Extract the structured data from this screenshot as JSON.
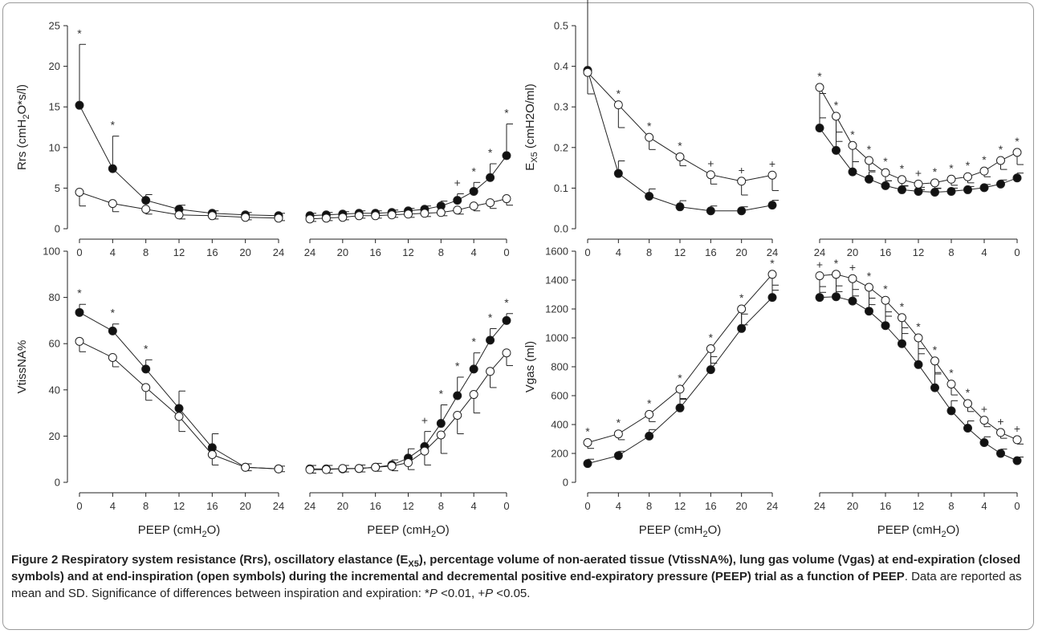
{
  "figure": {
    "caption": {
      "label": "Figure 2",
      "title_part1": "Respiratory system resistance (Rrs), oscillatory elastance (E",
      "title_sub": "X5",
      "title_part2": "), percentage volume of non-aerated tissue (VtissNA%), lung gas volume (Vgas) at end-expiration (closed symbols) and at end-inspiration (open symbols) during the incremental and decremental positive end-expiratory pressure (PEEP) trial as a function of PEEP",
      "body1": ". Data are reported as mean and SD. Significance of differences between inspiration and expiration: *",
      "p1": "P",
      "body2": " <0.01, +",
      "p2": "P",
      "body3": " <0.05."
    },
    "xlabel": "PEEP (cmH2O)"
  },
  "chart_data": [
    {
      "type": "line",
      "panel": "Rrs-incremental",
      "ylabel": "Rrs (cmH2O*s/l)",
      "xlabel": "PEEP (cmH2O)",
      "x": [
        0,
        4,
        8,
        12,
        16,
        20,
        24
      ],
      "xticks": [
        0,
        4,
        8,
        12,
        16,
        20,
        24
      ],
      "xlim": [
        0,
        24
      ],
      "ylim": [
        0,
        25
      ],
      "yticks": [
        0,
        5,
        10,
        15,
        20,
        25
      ],
      "series": [
        {
          "marker": "closed",
          "values": [
            15.2,
            7.4,
            3.5,
            2.4,
            1.9,
            1.7,
            1.6
          ],
          "sd": [
            7.5,
            4.0,
            0.7,
            0.5,
            0.3,
            0.3,
            0.3
          ]
        },
        {
          "marker": "open",
          "values": [
            4.5,
            3.1,
            2.4,
            1.7,
            1.6,
            1.4,
            1.3
          ],
          "sd": [
            1.7,
            1.0,
            0.6,
            0.5,
            0.4,
            0.3,
            0.3
          ]
        }
      ],
      "annotations": [
        "*",
        "*",
        "",
        "",
        "",
        "",
        ""
      ]
    },
    {
      "type": "line",
      "panel": "Rrs-decremental",
      "xlabel": "PEEP (cmH2O)",
      "x": [
        24,
        22,
        20,
        18,
        16,
        14,
        12,
        10,
        8,
        6,
        4,
        2,
        0
      ],
      "xticks": [
        24,
        20,
        16,
        12,
        8,
        4,
        0
      ],
      "xlim": [
        24,
        0
      ],
      "ylim": [
        0,
        25
      ],
      "series": [
        {
          "marker": "closed",
          "values": [
            1.6,
            1.7,
            1.8,
            1.9,
            1.9,
            2.0,
            2.2,
            2.4,
            2.8,
            3.5,
            4.6,
            6.3,
            9.0
          ],
          "sd": [
            0.3,
            0.3,
            0.3,
            0.3,
            0.3,
            0.3,
            0.3,
            0.4,
            0.6,
            0.8,
            1.1,
            1.7,
            3.9
          ]
        },
        {
          "marker": "open",
          "values": [
            1.2,
            1.3,
            1.4,
            1.6,
            1.6,
            1.7,
            1.8,
            1.9,
            2.0,
            2.3,
            2.8,
            3.2,
            3.7
          ],
          "sd": [
            0.3,
            0.3,
            0.3,
            0.3,
            0.3,
            0.3,
            0.4,
            0.4,
            0.4,
            0.5,
            0.6,
            0.7,
            0.8
          ]
        }
      ],
      "annotations": [
        "",
        "",
        "",
        "",
        "",
        "",
        "",
        "",
        "",
        "+",
        "*",
        "*",
        "*"
      ]
    },
    {
      "type": "line",
      "panel": "EX5-incremental",
      "ylabel": "EX5 (cmH2O/ml)",
      "xlabel": "PEEP (cmH2O)",
      "x": [
        0,
        4,
        8,
        12,
        16,
        20,
        24
      ],
      "xticks": [
        0,
        4,
        8,
        12,
        16,
        20,
        24
      ],
      "xlim": [
        0,
        24
      ],
      "ylim": [
        0,
        0.5
      ],
      "yticks": [
        0.0,
        0.1,
        0.2,
        0.3,
        0.4,
        0.5
      ],
      "series": [
        {
          "marker": "closed",
          "values": [
            0.39,
            0.136,
            0.08,
            0.054,
            0.044,
            0.044,
            0.058
          ],
          "sd": [
            0.195,
            0.031,
            0.018,
            0.015,
            0.012,
            0.01,
            0.012
          ]
        },
        {
          "marker": "open",
          "values": [
            0.385,
            0.305,
            0.225,
            0.177,
            0.133,
            0.117,
            0.132
          ],
          "sd": [
            0.053,
            0.056,
            0.03,
            0.022,
            0.023,
            0.034,
            0.038
          ]
        }
      ],
      "annotations": [
        "",
        "*",
        "*",
        "*",
        "+",
        "+",
        "+"
      ]
    },
    {
      "type": "line",
      "panel": "EX5-decremental",
      "xlabel": "PEEP (cmH2O)",
      "x": [
        24,
        22,
        20,
        18,
        16,
        14,
        12,
        10,
        8,
        6,
        4,
        2,
        0
      ],
      "xticks": [
        24,
        20,
        16,
        12,
        8,
        4,
        0
      ],
      "xlim": [
        24,
        0
      ],
      "ylim": [
        0,
        0.5
      ],
      "series": [
        {
          "marker": "closed",
          "values": [
            0.248,
            0.193,
            0.14,
            0.122,
            0.106,
            0.096,
            0.092,
            0.09,
            0.092,
            0.096,
            0.101,
            0.11,
            0.125
          ],
          "sd": [
            0.085,
            0.045,
            0.025,
            0.018,
            0.012,
            0.01,
            0.01,
            0.01,
            0.008,
            0.008,
            0.008,
            0.01,
            0.012
          ]
        },
        {
          "marker": "open",
          "values": [
            0.348,
            0.277,
            0.205,
            0.168,
            0.138,
            0.121,
            0.11,
            0.113,
            0.122,
            0.128,
            0.142,
            0.168,
            0.188
          ],
          "sd": [
            0.075,
            0.062,
            0.04,
            0.025,
            0.02,
            0.016,
            0.014,
            0.014,
            0.015,
            0.015,
            0.014,
            0.022,
            0.03
          ]
        }
      ],
      "annotations": [
        "*",
        "*",
        "*",
        "*",
        "*",
        "*",
        "+",
        "*",
        "*",
        "*",
        "*",
        "*",
        "*"
      ]
    },
    {
      "type": "line",
      "panel": "VtissNA-incremental",
      "ylabel": "VtissNA%",
      "xlabel": "PEEP (cmH2O)",
      "x": [
        0,
        4,
        8,
        12,
        16,
        20,
        24
      ],
      "xticks": [
        0,
        4,
        8,
        12,
        16,
        20,
        24
      ],
      "xlim": [
        0,
        24
      ],
      "ylim": [
        0,
        100
      ],
      "yticks": [
        0,
        20,
        40,
        60,
        80,
        100
      ],
      "series": [
        {
          "marker": "closed",
          "values": [
            73.5,
            65.5,
            49,
            32,
            15,
            6.5,
            5.8
          ],
          "sd": [
            3.5,
            3.0,
            4.0,
            7.5,
            6.0,
            1.5,
            1.2
          ]
        },
        {
          "marker": "open",
          "values": [
            61,
            54,
            41,
            28.5,
            12,
            6.5,
            5.8
          ],
          "sd": [
            4.5,
            4.0,
            5.5,
            6.5,
            4.5,
            1.5,
            1.2
          ]
        }
      ],
      "annotations": [
        "*",
        "*",
        "*",
        "",
        "",
        "",
        ""
      ]
    },
    {
      "type": "line",
      "panel": "VtissNA-decremental",
      "xlabel": "PEEP (cmH2O)",
      "x": [
        24,
        22,
        20,
        18,
        16,
        14,
        12,
        10,
        8,
        6,
        4,
        2,
        0
      ],
      "xticks": [
        24,
        20,
        16,
        12,
        8,
        4,
        0
      ],
      "xlim": [
        24,
        0
      ],
      "ylim": [
        0,
        100
      ],
      "series": [
        {
          "marker": "closed",
          "values": [
            5.8,
            5.8,
            5.8,
            6.0,
            6.5,
            7.5,
            10.5,
            15.5,
            25.5,
            37.5,
            49,
            61.5,
            70
          ],
          "sd": [
            1.5,
            1.5,
            1.5,
            1.5,
            1.7,
            2.2,
            4.0,
            6.5,
            8.0,
            8.0,
            7.0,
            5.0,
            3.0
          ]
        },
        {
          "marker": "open",
          "values": [
            5.5,
            5.5,
            6.0,
            6.0,
            6.5,
            7.0,
            8.5,
            13.5,
            20.5,
            29,
            38,
            48,
            56
          ],
          "sd": [
            1.5,
            1.5,
            1.5,
            1.5,
            1.7,
            2.0,
            3.0,
            6.0,
            8.0,
            8.0,
            8.0,
            7.0,
            5.5
          ]
        }
      ],
      "annotations": [
        "",
        "",
        "",
        "",
        "",
        "",
        "",
        "+",
        "*",
        "*",
        "*",
        "*",
        "*"
      ]
    },
    {
      "type": "line",
      "panel": "Vgas-incremental",
      "ylabel": "Vgas (ml)",
      "xlabel": "PEEP (cmH2O)",
      "x": [
        0,
        4,
        8,
        12,
        16,
        20,
        24
      ],
      "xticks": [
        0,
        4,
        8,
        12,
        16,
        20,
        24
      ],
      "xlim": [
        0,
        24
      ],
      "ylim": [
        0,
        1600
      ],
      "yticks": [
        0,
        200,
        400,
        600,
        800,
        1000,
        1200,
        1400,
        1600
      ],
      "series": [
        {
          "marker": "closed",
          "values": [
            130,
            185,
            320,
            515,
            780,
            1065,
            1280
          ],
          "sd": [
            30,
            30,
            45,
            65,
            90,
            100,
            85
          ]
        },
        {
          "marker": "open",
          "values": [
            275,
            335,
            470,
            645,
            925,
            1200,
            1440
          ],
          "sd": [
            40,
            40,
            50,
            70,
            100,
            110,
            110
          ]
        }
      ],
      "annotations": [
        "*",
        "*",
        "*",
        "*",
        "*",
        "*",
        "*"
      ]
    },
    {
      "type": "line",
      "panel": "Vgas-decremental",
      "xlabel": "PEEP (cmH2O)",
      "x": [
        24,
        22,
        20,
        18,
        16,
        14,
        12,
        10,
        8,
        6,
        4,
        2,
        0
      ],
      "xticks": [
        24,
        20,
        16,
        12,
        8,
        4,
        0
      ],
      "xlim": [
        24,
        0
      ],
      "ylim": [
        0,
        1600
      ],
      "series": [
        {
          "marker": "closed",
          "values": [
            1280,
            1285,
            1255,
            1185,
            1085,
            960,
            815,
            655,
            495,
            375,
            275,
            200,
            150
          ],
          "sd": [
            75,
            75,
            80,
            90,
            95,
            110,
            110,
            105,
            70,
            50,
            40,
            30,
            25
          ]
        },
        {
          "marker": "open",
          "values": [
            1430,
            1440,
            1410,
            1350,
            1260,
            1140,
            1000,
            840,
            680,
            545,
            430,
            345,
            295
          ],
          "sd": [
            115,
            120,
            120,
            120,
            110,
            110,
            110,
            90,
            75,
            55,
            45,
            40,
            30
          ]
        }
      ],
      "annotations": [
        "+",
        "*",
        "+",
        "*",
        "*",
        "*",
        "*",
        "*",
        "*",
        "*",
        "+",
        "+",
        "+"
      ]
    }
  ]
}
